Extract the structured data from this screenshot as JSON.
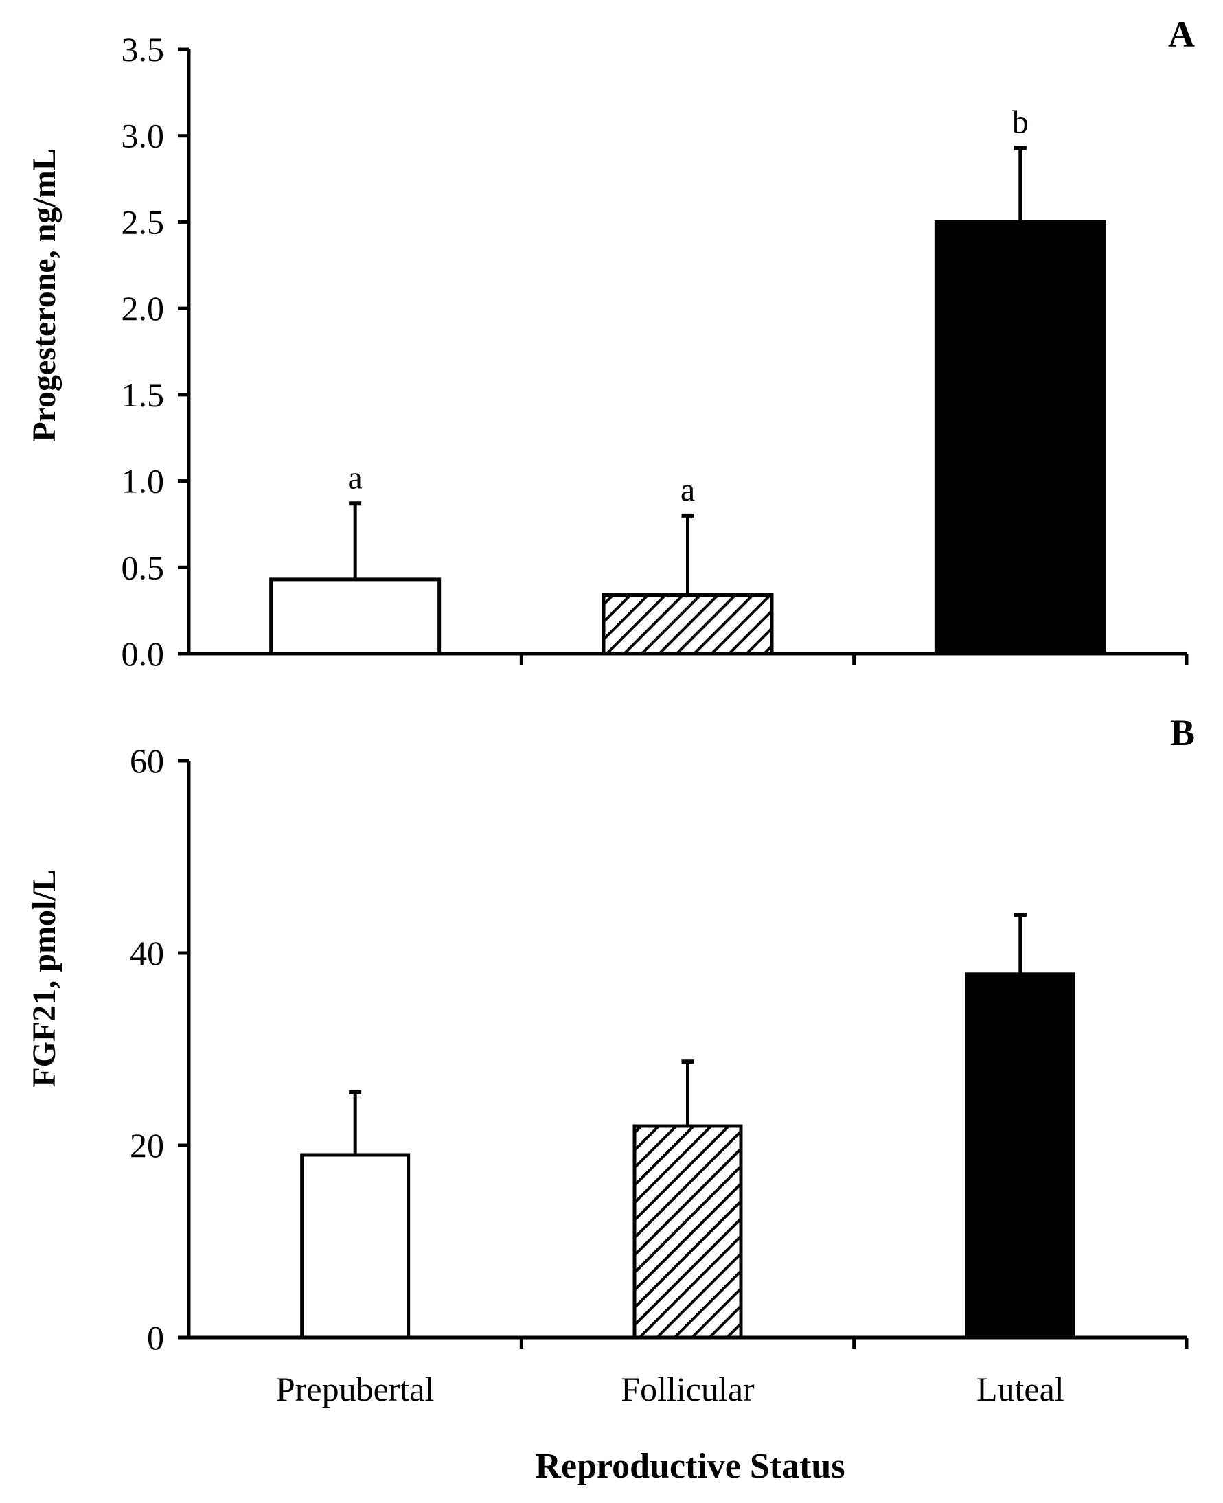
{
  "chart_data": [
    {
      "type": "bar",
      "panel_label": "A",
      "categories": [
        "Prepubertal",
        "Follicular",
        "Luteal"
      ],
      "values": [
        0.43,
        0.34,
        2.5
      ],
      "error_upper": [
        0.44,
        0.46,
        0.43
      ],
      "significance": [
        "a",
        "a",
        "b"
      ],
      "fills": [
        "white",
        "hatched",
        "black"
      ],
      "ylabel": "Progesterone, ng/mL",
      "ylim": [
        0,
        3.5
      ],
      "yticks": [
        0.0,
        0.5,
        1.0,
        1.5,
        2.0,
        2.5,
        3.0,
        3.5
      ],
      "ytick_labels": [
        "0.0",
        "0.5",
        "1.0",
        "1.5",
        "2.0",
        "2.5",
        "3.0",
        "3.5"
      ],
      "grid": false
    },
    {
      "type": "bar",
      "panel_label": "B",
      "categories": [
        "Prepubertal",
        "Follicular",
        "Luteal"
      ],
      "values": [
        19,
        22,
        37.8
      ],
      "error_upper": [
        6.5,
        6.7,
        6.2
      ],
      "significance": [
        "",
        "",
        ""
      ],
      "fills": [
        "white",
        "hatched",
        "black"
      ],
      "ylabel": "FGF21, pmol/L",
      "xlabel": "Reproductive Status",
      "ylim": [
        0,
        60
      ],
      "yticks": [
        0,
        20,
        40,
        60
      ],
      "ytick_labels": [
        "0",
        "20",
        "40",
        "60"
      ],
      "grid": false
    }
  ],
  "colors": {
    "axis": "#000000",
    "bar_white": "#ffffff",
    "bar_black": "#000000"
  }
}
